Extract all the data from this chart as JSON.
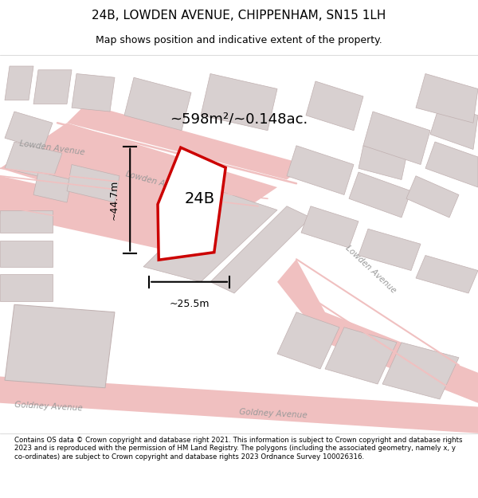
{
  "title": "24B, LOWDEN AVENUE, CHIPPENHAM, SN15 1LH",
  "subtitle": "Map shows position and indicative extent of the property.",
  "area_text": "~598m²/~0.148ac.",
  "dim_height": "~44.7m",
  "dim_width": "~25.5m",
  "label": "24B",
  "footer": "Contains OS data © Crown copyright and database right 2021. This information is subject to Crown copyright and database rights 2023 and is reproduced with the permission of HM Land Registry. The polygons (including the associated geometry, namely x, y co-ordinates) are subject to Crown copyright and database rights 2023 Ordnance Survey 100026316.",
  "map_bg": "#f7f2f2",
  "plot_color": "#cc0000",
  "road_color": "#f0c0c0",
  "building_color": "#d8d0d0",
  "building_edge": "#c0b0b0",
  "fig_width": 6.0,
  "fig_height": 6.25
}
